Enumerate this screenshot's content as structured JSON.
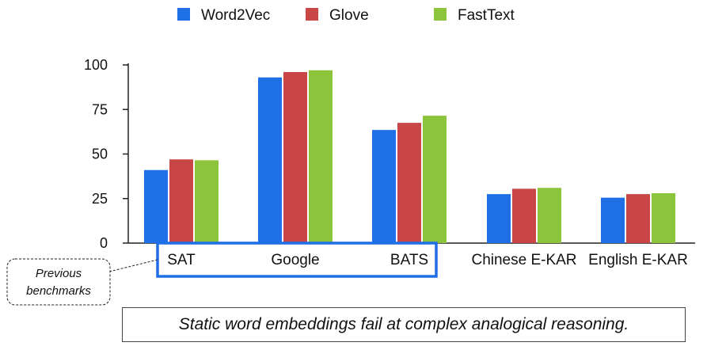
{
  "chart_data": {
    "type": "bar",
    "categories": [
      "SAT",
      "Google",
      "BATS",
      "Chinese E-KAR",
      "English E-KAR"
    ],
    "series": [
      {
        "name": "Word2Vec",
        "color": "#1f6fe6",
        "values": [
          41,
          93,
          63.5,
          27.5,
          25.5
        ]
      },
      {
        "name": "Glove",
        "color": "#c84646",
        "values": [
          47,
          96,
          67.5,
          30.5,
          27.5
        ]
      },
      {
        "name": "FastText",
        "color": "#8cc43c",
        "values": [
          46.5,
          97,
          71.5,
          31,
          28
        ]
      }
    ],
    "yticks": [
      0,
      25,
      50,
      75,
      100
    ],
    "ylim": [
      0,
      100
    ],
    "legend_position": "top",
    "grid": false,
    "highlight": {
      "categories": [
        "SAT",
        "Google",
        "BATS"
      ],
      "color": "#1f6fe6"
    },
    "annotation": "Previous benchmarks"
  },
  "caption": "Static word embeddings fail at complex analogical reasoning."
}
